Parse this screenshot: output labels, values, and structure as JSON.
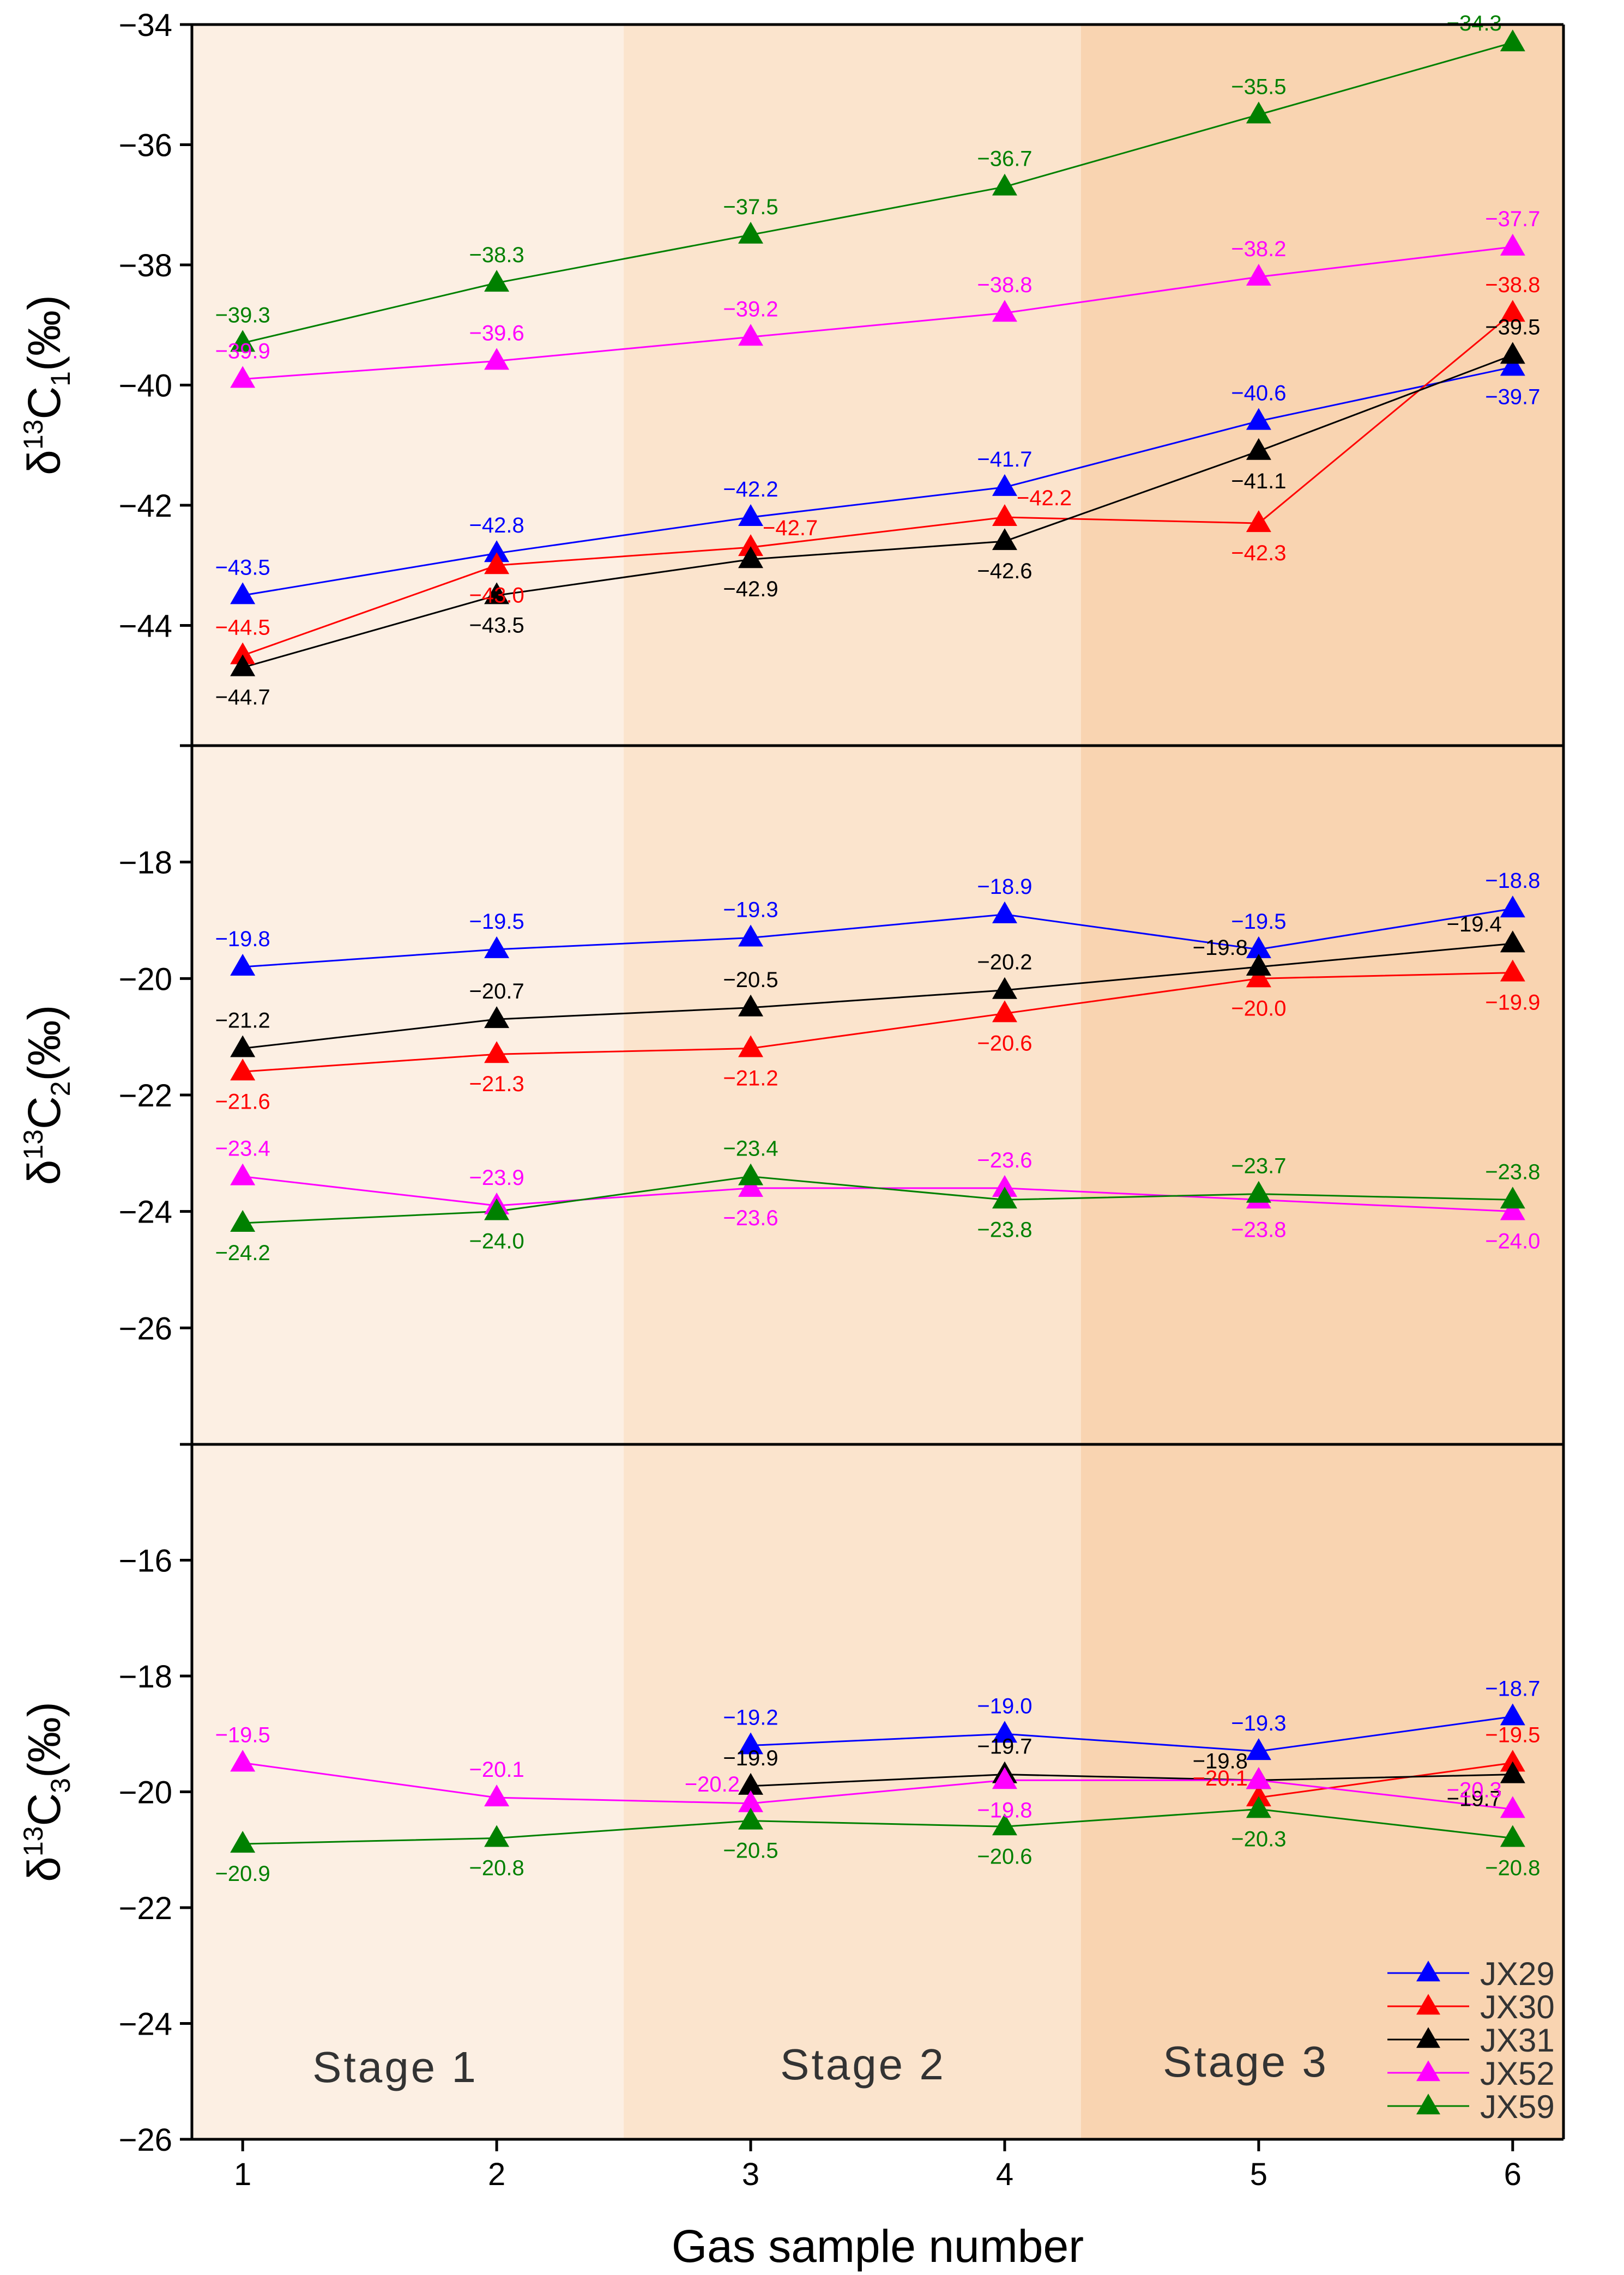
{
  "chart_data": {
    "type": "line",
    "x_title": "Gas sample number",
    "x_ticks": [
      1,
      2,
      3,
      4,
      5,
      6
    ],
    "xlim": [
      0.8,
      6.2
    ],
    "stages": [
      {
        "name": "Stage  1",
        "start": 0.8,
        "end": 2.5,
        "color": "#fcefe3"
      },
      {
        "name": "Stage  2",
        "start": 2.5,
        "end": 4.3,
        "color": "#fbe4cd"
      },
      {
        "name": "Stage  3",
        "start": 4.3,
        "end": 6.2,
        "color": "#f9d4b1"
      }
    ],
    "legend": [
      {
        "name": "JX29",
        "color": "#0000ff"
      },
      {
        "name": "JX30",
        "color": "#ff0000"
      },
      {
        "name": "JX31",
        "color": "#000000"
      },
      {
        "name": "JX52",
        "color": "#ff00ff"
      },
      {
        "name": "JX59",
        "color": "#008000"
      }
    ],
    "panels": [
      {
        "ylabel_main": "δ",
        "ylabel_sup": "13",
        "ylabel_c": "C",
        "ylabel_sub": "1",
        "ylabel_unit": "(‰)",
        "ylim": [
          -46,
          -34
        ],
        "yticks": [
          -44,
          -42,
          -40,
          -38,
          -36,
          -34
        ],
        "ytick_labels": [
          "−44",
          "−42",
          "−40",
          "−38",
          "−36",
          "−34"
        ],
        "series": [
          {
            "name": "JX29",
            "color": "#0000ff",
            "x": [
              1,
              2,
              3,
              4,
              5,
              6
            ],
            "values": [
              -43.5,
              -42.8,
              -42.2,
              -41.7,
              -40.6,
              -39.7
            ],
            "labels": [
              "−43.5",
              "−42.8",
              "−42.2",
              "−41.7",
              "−40.6",
              "−39.7"
            ],
            "pos": [
              "a",
              "a",
              "a",
              "a",
              "a",
              "b"
            ]
          },
          {
            "name": "JX30",
            "color": "#ff0000",
            "x": [
              1,
              2,
              3,
              4,
              5,
              6
            ],
            "values": [
              -44.5,
              -43.0,
              -42.7,
              -42.2,
              -42.3,
              -38.8
            ],
            "labels": [
              "−44.5",
              "−43.0",
              "−42.7",
              "−42.2",
              "−42.3",
              "−38.8"
            ],
            "pos": [
              "a",
              "b",
              "r",
              "r",
              "b",
              "a"
            ]
          },
          {
            "name": "JX31",
            "color": "#000000",
            "x": [
              1,
              2,
              3,
              4,
              5,
              6
            ],
            "values": [
              -44.7,
              -43.5,
              -42.9,
              -42.6,
              -41.1,
              -39.5
            ],
            "labels": [
              "−44.7",
              "−43.5",
              "−42.9",
              "−42.6",
              "−41.1",
              "−39.5"
            ],
            "pos": [
              "b",
              "b",
              "b",
              "b",
              "b",
              "a"
            ]
          },
          {
            "name": "JX52",
            "color": "#ff00ff",
            "x": [
              1,
              2,
              3,
              4,
              5,
              6
            ],
            "values": [
              -39.9,
              -39.6,
              -39.2,
              -38.8,
              -38.2,
              -37.7
            ],
            "labels": [
              "−39.9",
              "−39.6",
              "−39.2",
              "−38.8",
              "−38.2",
              "−37.7"
            ],
            "pos": [
              "a",
              "a",
              "a",
              "a",
              "a",
              "a"
            ]
          },
          {
            "name": "JX59",
            "color": "#008000",
            "x": [
              1,
              2,
              3,
              4,
              5,
              6
            ],
            "values": [
              -39.3,
              -38.3,
              -37.5,
              -36.7,
              -35.5,
              -34.3
            ],
            "labels": [
              "−39.3",
              "−38.3",
              "−37.5",
              "−36.7",
              "−35.5",
              "−34.3"
            ],
            "pos": [
              "a",
              "a",
              "a",
              "a",
              "a",
              "l"
            ]
          }
        ]
      },
      {
        "ylabel_main": "δ",
        "ylabel_sup": "13",
        "ylabel_c": "C",
        "ylabel_sub": "2",
        "ylabel_unit": "(‰)",
        "ylim": [
          -28,
          -16
        ],
        "yticks": [
          -26,
          -24,
          -22,
          -20,
          -18
        ],
        "ytick_labels": [
          "−26",
          "−24",
          "−22",
          "−20",
          "−18"
        ],
        "series": [
          {
            "name": "JX29",
            "color": "#0000ff",
            "x": [
              1,
              2,
              3,
              4,
              5,
              6
            ],
            "values": [
              -19.8,
              -19.5,
              -19.3,
              -18.9,
              -19.5,
              -18.8
            ],
            "labels": [
              "−19.8",
              "−19.5",
              "−19.3",
              "−18.9",
              "−19.5",
              "−18.8"
            ],
            "pos": [
              "a",
              "a",
              "a",
              "a",
              "a",
              "a"
            ]
          },
          {
            "name": "JX30",
            "color": "#ff0000",
            "x": [
              1,
              2,
              3,
              4,
              5,
              6
            ],
            "values": [
              -21.6,
              -21.3,
              -21.2,
              -20.6,
              -20.0,
              -19.9
            ],
            "labels": [
              "−21.6",
              "−21.3",
              "−21.2",
              "−20.6",
              "−20.0",
              "−19.9"
            ],
            "pos": [
              "b",
              "b",
              "b",
              "b",
              "b",
              "b"
            ]
          },
          {
            "name": "JX31",
            "color": "#000000",
            "x": [
              1,
              2,
              3,
              4,
              5,
              6
            ],
            "values": [
              -21.2,
              -20.7,
              -20.5,
              -20.2,
              -19.8,
              -19.4
            ],
            "labels": [
              "−21.2",
              "−20.7",
              "−20.5",
              "−20.2",
              "−19.8",
              "−19.4"
            ],
            "pos": [
              "a",
              "a",
              "a",
              "a",
              "l",
              "l"
            ]
          },
          {
            "name": "JX52",
            "color": "#ff00ff",
            "x": [
              1,
              2,
              3,
              4,
              5,
              6
            ],
            "values": [
              -23.4,
              -23.9,
              -23.6,
              -23.6,
              -23.8,
              -24.0
            ],
            "labels": [
              "−23.4",
              "−23.9",
              "−23.6",
              "−23.6",
              "−23.8",
              "−24.0"
            ],
            "pos": [
              "a",
              "a",
              "b",
              "a",
              "b",
              "b"
            ]
          },
          {
            "name": "JX59",
            "color": "#008000",
            "x": [
              1,
              2,
              3,
              4,
              5,
              6
            ],
            "values": [
              -24.2,
              -24.0,
              -23.4,
              -23.8,
              -23.7,
              -23.8
            ],
            "labels": [
              "−24.2",
              "−24.0",
              "−23.4",
              "−23.8",
              "−23.7",
              "−23.8"
            ],
            "pos": [
              "b",
              "b",
              "a",
              "b",
              "a",
              "a"
            ]
          }
        ]
      },
      {
        "ylabel_main": "δ",
        "ylabel_sup": "13",
        "ylabel_c": "C",
        "ylabel_sub": "3",
        "ylabel_unit": "(‰)",
        "ylim": [
          -26,
          -14
        ],
        "yticks": [
          -26,
          -24,
          -22,
          -20,
          -18,
          -16
        ],
        "ytick_labels": [
          "−26",
          "−24",
          "−22",
          "−20",
          "−18",
          "−16"
        ],
        "series": [
          {
            "name": "JX29",
            "color": "#0000ff",
            "x": [
              3,
              4,
              5,
              6
            ],
            "values": [
              -19.2,
              -19.0,
              -19.3,
              -18.7
            ],
            "labels": [
              "−19.2",
              "−19.0",
              "−19.3",
              "−18.7"
            ],
            "pos": [
              "a",
              "a",
              "a",
              "a"
            ]
          },
          {
            "name": "JX30",
            "color": "#ff0000",
            "x": [
              5,
              6
            ],
            "values": [
              -20.1,
              -19.5
            ],
            "labels": [
              "−20.1",
              "−19.5"
            ],
            "pos": [
              "l",
              "a"
            ]
          },
          {
            "name": "JX31",
            "color": "#000000",
            "x": [
              3,
              4,
              5,
              6
            ],
            "values": [
              -19.9,
              -19.7,
              -19.8,
              -19.7
            ],
            "labels": [
              "−19.9",
              "−19.7",
              "−19.8",
              "−19.7"
            ],
            "pos": [
              "a",
              "a",
              "l",
              "bl"
            ]
          },
          {
            "name": "JX52",
            "color": "#ff00ff",
            "x": [
              1,
              2,
              3,
              4,
              5,
              6
            ],
            "values": [
              -19.5,
              -20.1,
              -20.2,
              -19.8,
              -19.8,
              -20.3
            ],
            "labels": [
              "−19.5",
              "−20.1",
              "−20.2",
              "−19.8",
              "",
              "−20.3"
            ],
            "pos": [
              "a",
              "a",
              "l",
              "b",
              "a",
              "l"
            ]
          },
          {
            "name": "JX59",
            "color": "#008000",
            "x": [
              1,
              2,
              3,
              4,
              5,
              6
            ],
            "values": [
              -20.9,
              -20.8,
              -20.5,
              -20.6,
              -20.3,
              -20.8
            ],
            "labels": [
              "−20.9",
              "−20.8",
              "−20.5",
              "−20.6",
              "−20.3",
              "−20.8"
            ],
            "pos": [
              "b",
              "b",
              "b",
              "b",
              "b",
              "b"
            ]
          }
        ]
      }
    ]
  }
}
